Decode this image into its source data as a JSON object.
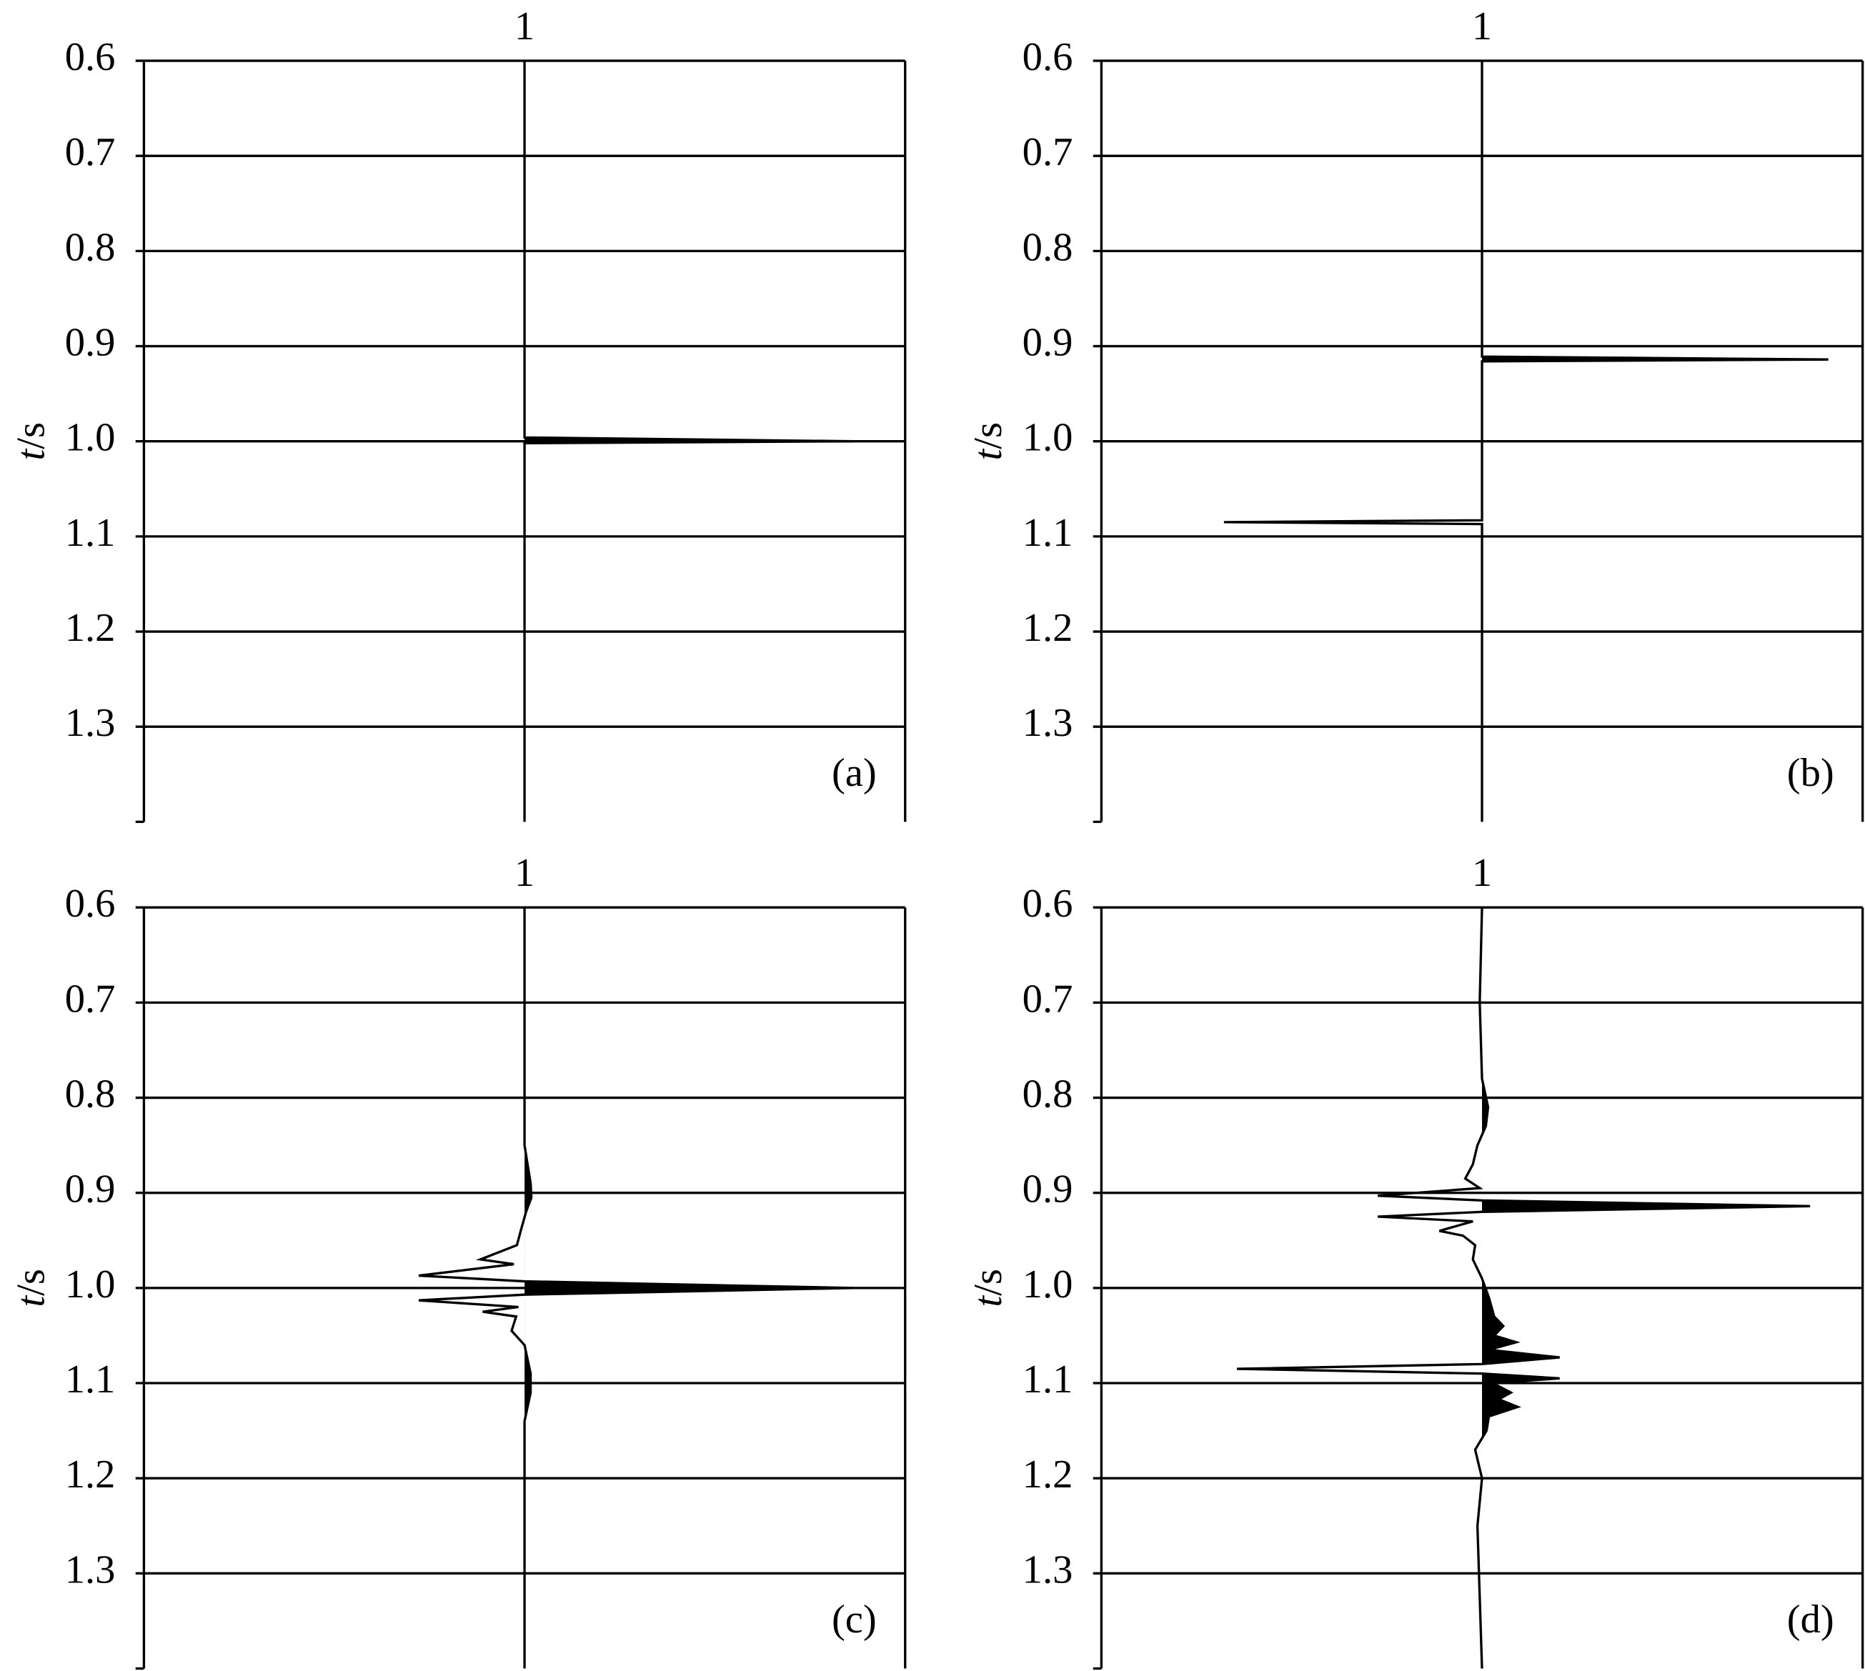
{
  "chart_data": [
    {
      "type": "line",
      "annotation": "(a)",
      "y_label": {
        "symbol": "t",
        "unit": "/s"
      },
      "xlim": [
        0.5,
        1.5
      ],
      "xticks": [
        1
      ],
      "ylim": [
        0.6,
        1.4
      ],
      "yticks": [
        0.6,
        0.7,
        0.8,
        0.9,
        {
          "value": 1,
          "label": "1.0"
        },
        1.1,
        1.2,
        1.3
      ],
      "grid": true,
      "series": [
        {
          "color": "#000000",
          "t": [
            0.6,
            0.996,
            1.0,
            1.002,
            1.4
          ],
          "values": [
            1,
            1,
            1.433,
            1,
            1
          ]
        }
      ]
    },
    {
      "type": "line",
      "annotation": "(b)",
      "y_label": {
        "symbol": "t",
        "unit": "/s"
      },
      "xlim": [
        0.5,
        1.5
      ],
      "xticks": [
        1
      ],
      "ylim": [
        0.6,
        1.4
      ],
      "yticks": [
        0.6,
        0.7,
        0.8,
        0.9,
        {
          "value": 1,
          "label": "1.0"
        },
        1.1,
        1.2,
        1.3
      ],
      "grid": true,
      "series": [
        {
          "color": "#000000",
          "t": [
            0.6,
            0.911,
            0.914,
            0.916,
            1.083,
            1.085,
            1.087,
            1.4
          ],
          "values": [
            1,
            1,
            1.455,
            1,
            1,
            0.661,
            1,
            1
          ]
        }
      ]
    },
    {
      "type": "line",
      "annotation": "(c)",
      "y_label": {
        "symbol": "t",
        "unit": "/s"
      },
      "xlim": [
        0.5,
        1.5
      ],
      "xticks": [
        1
      ],
      "ylim": [
        0.6,
        1.4
      ],
      "yticks": [
        0.6,
        0.7,
        0.8,
        0.9,
        {
          "value": 1,
          "label": "1.0"
        },
        1.1,
        1.2,
        1.3
      ],
      "grid": true,
      "series": [
        {
          "color": "#000000",
          "t": [
            0.6,
            0.85,
            0.89,
            0.905,
            0.92,
            0.94,
            0.955,
            0.97,
            0.975,
            0.987,
            0.993,
            1.0,
            1.007,
            1.013,
            1.02,
            1.025,
            1.03,
            1.045,
            1.06,
            1.09,
            1.11,
            1.14,
            1.4
          ],
          "values": [
            1,
            1,
            1.008,
            1.009,
            1.002,
            0.995,
            0.99,
            0.942,
            0.986,
            0.861,
            1,
            1.433,
            1,
            0.861,
            0.992,
            0.945,
            0.989,
            0.983,
            1,
            1.008,
            1.008,
            1,
            1
          ]
        }
      ]
    },
    {
      "type": "line",
      "annotation": "(d)",
      "y_label": {
        "symbol": "t",
        "unit": "/s"
      },
      "xlim": [
        0.5,
        1.5
      ],
      "xticks": [
        1
      ],
      "ylim": [
        0.6,
        1.4
      ],
      "yticks": [
        0.6,
        0.7,
        0.8,
        0.9,
        {
          "value": 1,
          "label": "1.0"
        },
        1.1,
        1.2,
        1.3
      ],
      "grid": true,
      "series": [
        {
          "color": "#000000",
          "t": [
            0.6,
            0.7,
            0.78,
            0.81,
            0.83,
            0.85,
            0.87,
            0.885,
            0.895,
            0.903,
            0.908,
            0.914,
            0.92,
            0.925,
            0.93,
            0.94,
            0.945,
            0.955,
            0.97,
            0.99,
            1.01,
            1.03,
            1.04,
            1.05,
            1.057,
            1.065,
            1.073,
            1.08,
            1.085,
            1.09,
            1.095,
            1.1,
            1.11,
            1.117,
            1.125,
            1.135,
            1.15,
            1.17,
            1.2,
            1.25,
            1.4
          ],
          "values": [
            1,
            0.997,
            1,
            1.008,
            1.005,
            0.994,
            0.988,
            0.978,
            0.997,
            0.863,
            1,
            1.431,
            1,
            0.863,
            0.988,
            0.944,
            0.975,
            0.991,
            0.988,
            1,
            1.009,
            1.016,
            1.028,
            1.016,
            1.045,
            1.009,
            1.102,
            1,
            0.678,
            1,
            1.102,
            1.014,
            1.038,
            1.022,
            1.047,
            1.009,
            1.006,
            0.991,
            1,
            0.994,
            1
          ]
        }
      ]
    }
  ]
}
